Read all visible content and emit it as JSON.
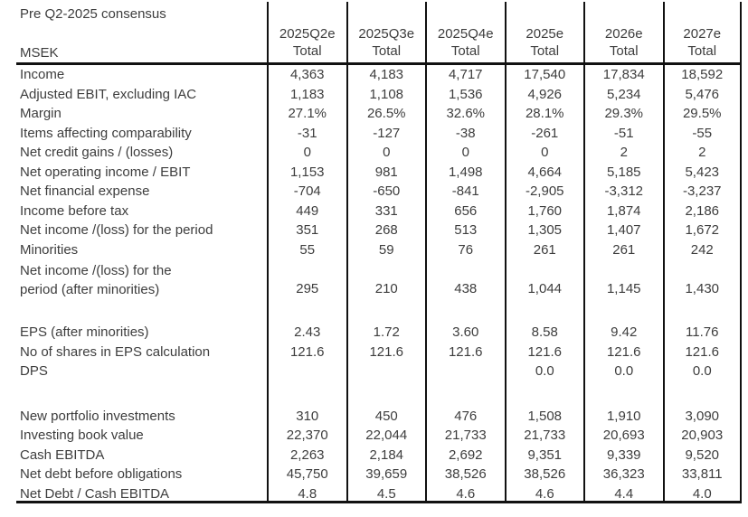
{
  "table": {
    "title": "Pre Q2-2025 consensus",
    "unit_label": "MSEK",
    "colors": {
      "text": "#3d3d3d",
      "line": "#111111",
      "background": "#ffffff"
    },
    "columns": [
      {
        "period": "2025Q2e",
        "sub": "Total"
      },
      {
        "period": "2025Q3e",
        "sub": "Total"
      },
      {
        "period": "2025Q4e",
        "sub": "Total"
      },
      {
        "period": "2025e",
        "sub": "Total"
      },
      {
        "period": "2026e",
        "sub": "Total"
      },
      {
        "period": "2027e",
        "sub": "Total"
      }
    ],
    "rows": [
      {
        "label": "Income",
        "values": [
          "4,363",
          "4,183",
          "4,717",
          "17,540",
          "17,834",
          "18,592"
        ]
      },
      {
        "label": "Adjusted EBIT, excluding IAC",
        "values": [
          "1,183",
          "1,108",
          "1,536",
          "4,926",
          "5,234",
          "5,476"
        ]
      },
      {
        "label": "Margin",
        "values": [
          "27.1%",
          "26.5%",
          "32.6%",
          "28.1%",
          "29.3%",
          "29.5%"
        ]
      },
      {
        "label": "Items affecting comparability",
        "values": [
          "-31",
          "-127",
          "-38",
          "-261",
          "-51",
          "-55"
        ]
      },
      {
        "label": "Net credit gains / (losses)",
        "values": [
          "0",
          "0",
          "0",
          "0",
          "2",
          "2"
        ]
      },
      {
        "label": "Net operating income / EBIT",
        "values": [
          "1,153",
          "981",
          "1,498",
          "4,664",
          "5,185",
          "5,423"
        ]
      },
      {
        "label": "Net financial expense",
        "values": [
          "-704",
          "-650",
          "-841",
          "-2,905",
          "-3,312",
          "-3,237"
        ]
      },
      {
        "label": "Income before tax",
        "values": [
          "449",
          "331",
          "656",
          "1,760",
          "1,874",
          "2,186"
        ]
      },
      {
        "label": "Net income /(loss) for the period",
        "values": [
          "351",
          "268",
          "513",
          "1,305",
          "1,407",
          "1,672"
        ]
      },
      {
        "label": "Minorities",
        "values": [
          "55",
          "59",
          "76",
          "261",
          "261",
          "242"
        ]
      },
      {
        "type": "tall",
        "label": "Net income /(loss) for the period (after minorities)",
        "values": [
          "295",
          "210",
          "438",
          "1,044",
          "1,145",
          "1,430"
        ]
      },
      {
        "type": "spacer1",
        "label": "",
        "values": [
          "",
          "",
          "",
          "",
          "",
          ""
        ]
      },
      {
        "label": "EPS (after minorities)",
        "values": [
          "2.43",
          "1.72",
          "3.60",
          "8.58",
          "9.42",
          "11.76"
        ]
      },
      {
        "label": "No of shares in EPS calculation",
        "values": [
          "121.6",
          "121.6",
          "121.6",
          "121.6",
          "121.6",
          "121.6"
        ]
      },
      {
        "label": "DPS",
        "values": [
          "",
          "",
          "",
          "0.0",
          "0.0",
          "0.0"
        ]
      },
      {
        "type": "spacer2",
        "label": "",
        "values": [
          "",
          "",
          "",
          "",
          "",
          ""
        ]
      },
      {
        "label": "New portfolio investments",
        "values": [
          "310",
          "450",
          "476",
          "1,508",
          "1,910",
          "3,090"
        ]
      },
      {
        "label": "Investing book value",
        "values": [
          "22,370",
          "22,044",
          "21,733",
          "21,733",
          "20,693",
          "20,903"
        ]
      },
      {
        "label": "Cash EBITDA",
        "values": [
          "2,263",
          "2,184",
          "2,692",
          "9,351",
          "9,339",
          "9,520"
        ]
      },
      {
        "label": "Net debt before obligations",
        "values": [
          "45,750",
          "39,659",
          "38,526",
          "38,526",
          "36,323",
          "33,811"
        ]
      },
      {
        "label": "Net Debt / Cash EBITDA",
        "values": [
          "4.8",
          "4.5",
          "4.6",
          "4.6",
          "4.4",
          "4.0"
        ]
      }
    ]
  }
}
